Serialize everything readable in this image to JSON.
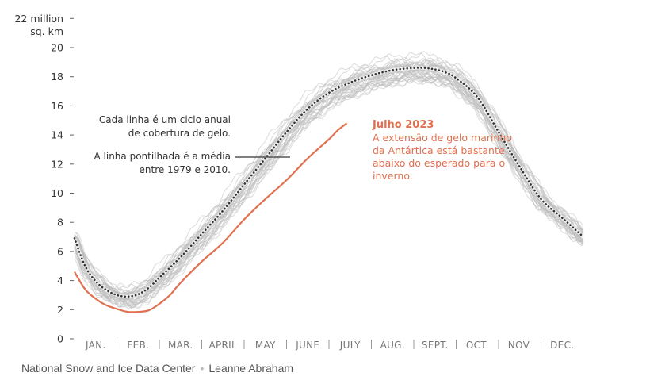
{
  "chart_data": {
    "type": "line",
    "y_unit_label": [
      "22 million",
      "sq. km"
    ],
    "ylim": [
      0,
      22
    ],
    "yticks": [
      0,
      2,
      4,
      6,
      8,
      10,
      12,
      14,
      16,
      18,
      20,
      22
    ],
    "ytick_labels": [
      "0",
      "2",
      "4",
      "6",
      "8",
      "10",
      "12",
      "14",
      "16",
      "18",
      "20",
      ""
    ],
    "months": [
      "JAN.",
      "FEB.",
      "MAR.",
      "APRIL",
      "MAY",
      "JUNE",
      "JULY",
      "AUG.",
      "SEPT.",
      "OCT.",
      "NOV.",
      "DEC."
    ],
    "x_unit": "month (1 = January, ends at 13)",
    "series": [
      {
        "name": "",
        "role": "mean 1979–2010 (dotted)",
        "color": "#333333",
        "x": [
          1,
          1.25,
          1.5,
          1.75,
          2,
          2.25,
          2.5,
          2.75,
          3,
          3.5,
          4,
          4.5,
          5,
          5.5,
          6,
          6.5,
          7,
          7.5,
          8,
          8.5,
          9,
          9.25,
          9.5,
          9.75,
          10,
          10.5,
          11,
          11.5,
          12,
          12.5,
          13
        ],
        "y": [
          6.9,
          5.0,
          3.95,
          3.35,
          3.0,
          2.9,
          3.05,
          3.5,
          4.2,
          5.6,
          7.2,
          8.8,
          10.6,
          12.4,
          14.2,
          15.8,
          16.9,
          17.6,
          18.1,
          18.45,
          18.6,
          18.6,
          18.5,
          18.3,
          17.9,
          16.6,
          14.2,
          11.8,
          9.6,
          8.3,
          7.0
        ]
      },
      {
        "name": "Julho 2023",
        "color": "#e0704f",
        "x": [
          1,
          1.25,
          1.5,
          1.75,
          2,
          2.25,
          2.5,
          2.75,
          3,
          3.25,
          3.5,
          4,
          4.5,
          5,
          5.5,
          6,
          6.5,
          7,
          7.2,
          7.42
        ],
        "y": [
          4.6,
          3.4,
          2.75,
          2.3,
          2.05,
          1.85,
          1.85,
          1.95,
          2.4,
          3.0,
          3.85,
          5.3,
          6.6,
          8.2,
          9.6,
          10.9,
          12.4,
          13.7,
          14.3,
          14.8
        ]
      }
    ],
    "background_lines": {
      "description": "one grey line per year 1979–2022",
      "color": "#bdbdbd"
    },
    "annotations": [
      {
        "lines": [
          "Cada linha é um ciclo anual",
          "de cobertura de gelo."
        ],
        "color": "#333333"
      },
      {
        "lines": [
          "A linha pontilhada é a média",
          "entre 1979 e 2010."
        ],
        "color": "#333333"
      },
      {
        "title": "Julho 2023",
        "lines": [
          "A extensão de gelo marinho",
          "da Antártica está bastante",
          "abaixo do esperado para o",
          "inverno."
        ],
        "color": "#e0704f"
      }
    ],
    "grid": false
  },
  "credits": {
    "source": "National Snow and Ice Data Center",
    "separator": "•",
    "author": "Leanne Abraham"
  }
}
